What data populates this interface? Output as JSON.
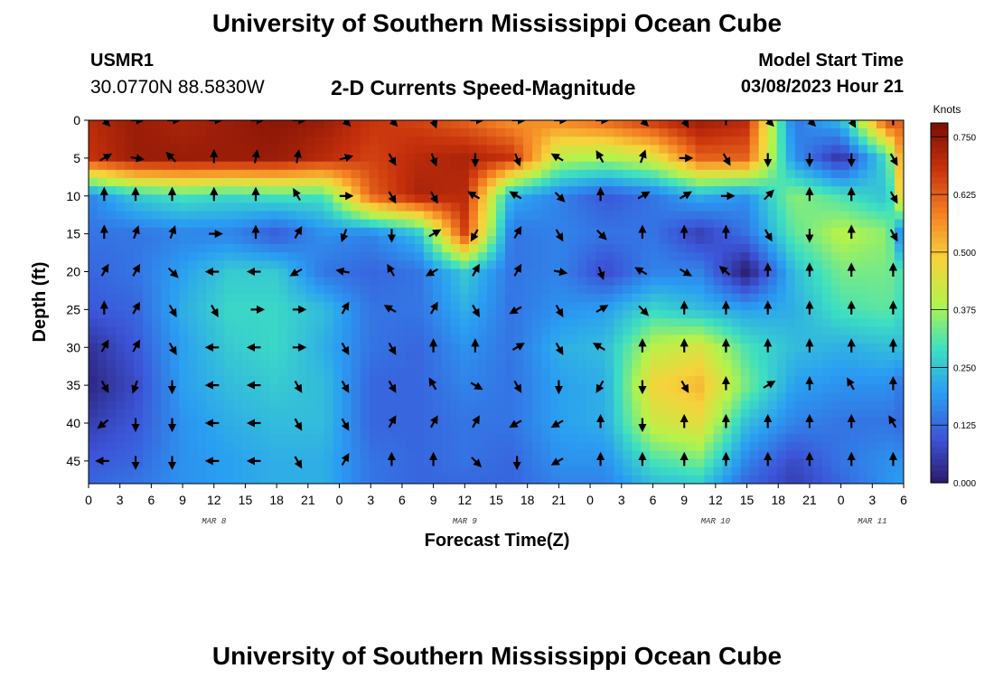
{
  "header": {
    "title": "University of Southern Mississippi Ocean Cube",
    "station_id": "USMR1",
    "coordinates": "30.0770N  88.5830W",
    "subtitle": "2-D Currents Speed-Magnitude",
    "model_start_label": "Model Start Time",
    "model_start_value": "03/08/2023 Hour 21"
  },
  "footer": {
    "title": "University of Southern Mississippi Ocean Cube"
  },
  "colors": {
    "colormap": [
      "#2b1a6b",
      "#3c55d8",
      "#2a9df2",
      "#3ee0c0",
      "#b4f34a",
      "#f7d23a",
      "#f47f23",
      "#c7310c",
      "#7a0f05"
    ]
  },
  "chart_data": {
    "type": "heatmap",
    "title": "2-D Currents Speed-Magnitude",
    "xlabel": "Forecast Time(Z)",
    "ylabel": "Depth (ft)",
    "xlim": [
      0,
      78
    ],
    "ylim": [
      48,
      0
    ],
    "x_ticks": [
      0,
      3,
      6,
      9,
      12,
      15,
      18,
      21,
      24,
      27,
      30,
      33,
      36,
      39,
      42,
      45,
      48,
      51,
      54,
      57,
      60,
      63,
      66,
      69,
      72,
      75,
      78
    ],
    "x_tick_labels": [
      "0",
      "3",
      "6",
      "9",
      "12",
      "15",
      "18",
      "21",
      "0",
      "3",
      "6",
      "9",
      "12",
      "15",
      "18",
      "21",
      "0",
      "3",
      "6",
      "9",
      "12",
      "15",
      "18",
      "21",
      "0",
      "3",
      "6"
    ],
    "y_ticks": [
      0,
      5,
      10,
      15,
      20,
      25,
      30,
      35,
      40,
      45
    ],
    "y_tick_labels": [
      "0",
      "5",
      "10",
      "15",
      "20",
      "25",
      "30",
      "35",
      "40",
      "45"
    ],
    "day_labels": [
      {
        "x": 12,
        "label": "MAR 8"
      },
      {
        "x": 36,
        "label": "MAR 9"
      },
      {
        "x": 60,
        "label": "MAR 10"
      },
      {
        "x": 75,
        "label": "MAR 11"
      }
    ],
    "colorbar": {
      "unit": "Knots",
      "min": 0.0,
      "max": 0.78,
      "ticks": [
        0.0,
        0.125,
        0.25,
        0.375,
        0.5,
        0.625,
        0.75
      ],
      "tick_labels": [
        "0.000",
        "0.125",
        "0.250",
        "0.375",
        "0.500",
        "0.625",
        "0.750"
      ]
    },
    "grid_x": [
      0,
      4.5,
      9,
      13.5,
      18,
      22.5,
      27,
      31.5,
      36,
      40.5,
      45,
      49.5,
      54,
      58.5,
      63,
      67.5,
      72,
      76.5,
      78
    ],
    "grid_depths": [
      0,
      5,
      10,
      15,
      20,
      25,
      30,
      35,
      40,
      45,
      48
    ],
    "speed": [
      [
        0.7,
        0.74,
        0.72,
        0.74,
        0.76,
        0.74,
        0.68,
        0.66,
        0.62,
        0.56,
        0.58,
        0.62,
        0.68,
        0.74,
        0.7,
        0.14,
        0.24,
        0.66,
        0.62
      ],
      [
        0.68,
        0.74,
        0.74,
        0.74,
        0.74,
        0.7,
        0.66,
        0.7,
        0.72,
        0.68,
        0.4,
        0.38,
        0.44,
        0.62,
        0.62,
        0.18,
        0.04,
        0.3,
        0.6
      ],
      [
        0.16,
        0.26,
        0.3,
        0.28,
        0.3,
        0.3,
        0.62,
        0.72,
        0.7,
        0.22,
        0.16,
        0.1,
        0.14,
        0.22,
        0.18,
        0.36,
        0.3,
        0.24,
        0.56
      ],
      [
        0.14,
        0.14,
        0.16,
        0.16,
        0.1,
        0.18,
        0.16,
        0.24,
        0.66,
        0.14,
        0.16,
        0.14,
        0.14,
        0.06,
        0.14,
        0.32,
        0.4,
        0.36,
        0.1
      ],
      [
        0.12,
        0.14,
        0.2,
        0.26,
        0.26,
        0.14,
        0.12,
        0.14,
        0.26,
        0.14,
        0.16,
        0.08,
        0.16,
        0.16,
        0.0,
        0.24,
        0.34,
        0.34,
        0.3
      ],
      [
        0.1,
        0.12,
        0.22,
        0.28,
        0.28,
        0.24,
        0.14,
        0.14,
        0.22,
        0.14,
        0.18,
        0.2,
        0.28,
        0.24,
        0.2,
        0.22,
        0.3,
        0.32,
        0.28
      ],
      [
        0.04,
        0.1,
        0.2,
        0.26,
        0.28,
        0.22,
        0.14,
        0.12,
        0.18,
        0.14,
        0.22,
        0.24,
        0.4,
        0.44,
        0.3,
        0.24,
        0.22,
        0.24,
        0.24
      ],
      [
        0.02,
        0.08,
        0.2,
        0.24,
        0.26,
        0.24,
        0.12,
        0.12,
        0.16,
        0.14,
        0.2,
        0.22,
        0.48,
        0.52,
        0.34,
        0.2,
        0.18,
        0.18,
        0.14
      ],
      [
        0.06,
        0.1,
        0.18,
        0.22,
        0.24,
        0.24,
        0.12,
        0.12,
        0.14,
        0.14,
        0.2,
        0.22,
        0.42,
        0.46,
        0.24,
        0.16,
        0.14,
        0.14,
        0.12
      ],
      [
        0.1,
        0.12,
        0.18,
        0.2,
        0.22,
        0.22,
        0.14,
        0.12,
        0.14,
        0.12,
        0.18,
        0.18,
        0.3,
        0.34,
        0.16,
        0.08,
        0.14,
        0.18,
        0.18
      ],
      [
        0.12,
        0.14,
        0.18,
        0.2,
        0.22,
        0.22,
        0.14,
        0.12,
        0.12,
        0.12,
        0.16,
        0.16,
        0.24,
        0.26,
        0.12,
        0.06,
        0.12,
        0.18,
        0.2
      ]
    ],
    "arrow_times": [
      1.5,
      4.5,
      8,
      12,
      16,
      20,
      24.5,
      29,
      33,
      37,
      41,
      45,
      49,
      53,
      57,
      61,
      65,
      69,
      73,
      77
    ],
    "arrow_depths": [
      0,
      5,
      10,
      15,
      20,
      25,
      30,
      35,
      40,
      45
    ],
    "arrow_direction_deg": [
      [
        135,
        90,
        90,
        90,
        90,
        90,
        135,
        135,
        160,
        90,
        90,
        90,
        90,
        135,
        150,
        0,
        135,
        135,
        150,
        0
      ],
      [
        60,
        100,
        315,
        0,
        10,
        10,
        75,
        150,
        160,
        180,
        160,
        300,
        330,
        20,
        90,
        150,
        180,
        180,
        180,
        150
      ],
      [
        0,
        0,
        0,
        0,
        0,
        330,
        90,
        150,
        150,
        300,
        300,
        135,
        0,
        60,
        60,
        90,
        45,
        0,
        0,
        150
      ],
      [
        0,
        20,
        20,
        90,
        0,
        30,
        200,
        180,
        60,
        210,
        30,
        150,
        135,
        0,
        0,
        0,
        150,
        180,
        0,
        150
      ],
      [
        30,
        30,
        135,
        270,
        270,
        240,
        280,
        330,
        240,
        30,
        30,
        100,
        160,
        300,
        120,
        310,
        0,
        0,
        0,
        0
      ],
      [
        0,
        30,
        150,
        150,
        90,
        90,
        30,
        300,
        30,
        150,
        240,
        150,
        60,
        135,
        0,
        0,
        0,
        0,
        0,
        0
      ],
      [
        30,
        30,
        150,
        270,
        270,
        90,
        150,
        150,
        0,
        0,
        60,
        150,
        300,
        0,
        0,
        0,
        0,
        0,
        0,
        0
      ],
      [
        150,
        200,
        180,
        270,
        270,
        150,
        150,
        150,
        330,
        120,
        150,
        180,
        210,
        180,
        150,
        0,
        60,
        0,
        330,
        0
      ],
      [
        230,
        180,
        180,
        270,
        270,
        150,
        150,
        30,
        30,
        30,
        240,
        240,
        0,
        180,
        0,
        0,
        0,
        0,
        0,
        330
      ],
      [
        270,
        180,
        180,
        270,
        270,
        150,
        30,
        0,
        0,
        135,
        180,
        240,
        0,
        0,
        0,
        0,
        0,
        0,
        0,
        0
      ]
    ]
  }
}
